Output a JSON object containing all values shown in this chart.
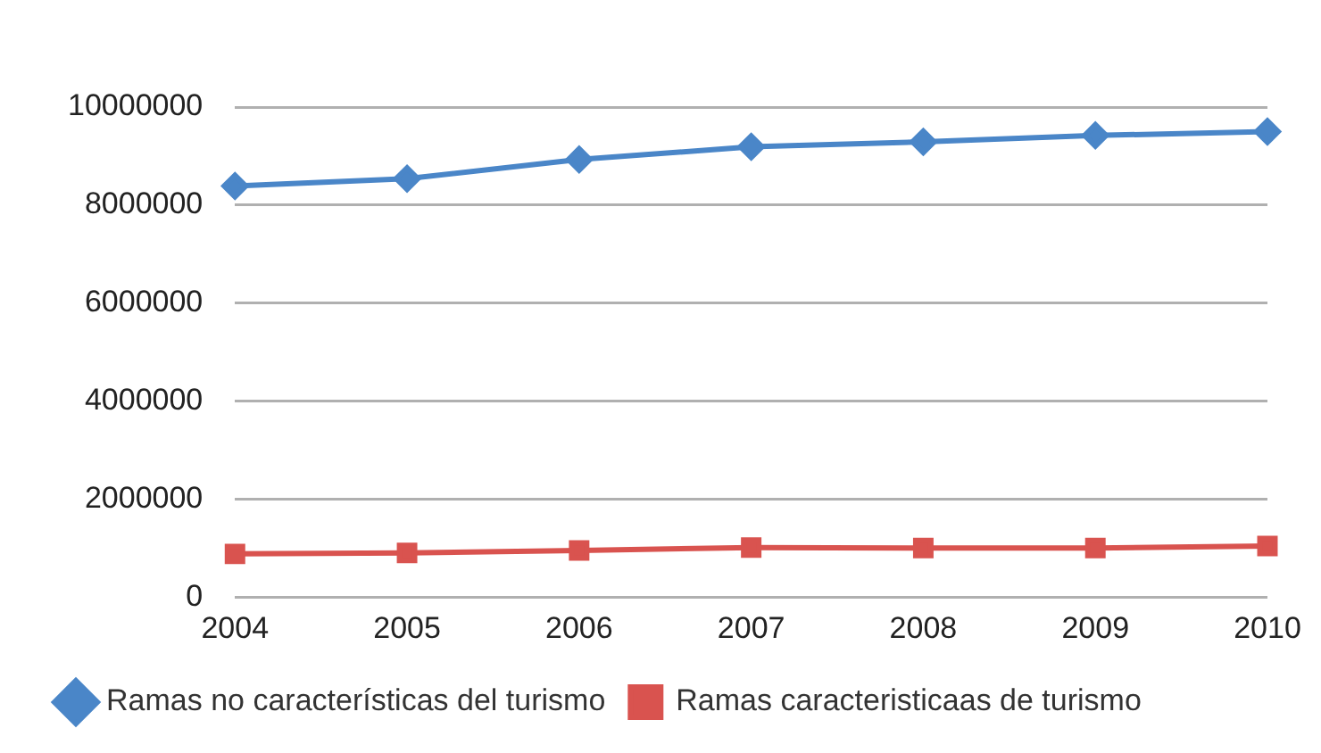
{
  "chart_data": {
    "type": "line",
    "categories": [
      "2004",
      "2005",
      "2006",
      "2007",
      "2008",
      "2009",
      "2010"
    ],
    "series": [
      {
        "name": "Ramas no características del turismo",
        "color": "#4a86c8",
        "marker": "diamond",
        "values": [
          8390000,
          8540000,
          8930000,
          9190000,
          9290000,
          9420000,
          9500000
        ]
      },
      {
        "name": "Ramas caracteristicaas de turismo",
        "color": "#d9534f",
        "marker": "square",
        "values": [
          880000,
          900000,
          950000,
          1010000,
          1000000,
          1000000,
          1040000
        ]
      }
    ],
    "ylim": [
      0,
      10000000
    ],
    "yticks": [
      0,
      2000000,
      4000000,
      6000000,
      8000000,
      10000000
    ],
    "grid": "y",
    "legend": "bottom"
  }
}
